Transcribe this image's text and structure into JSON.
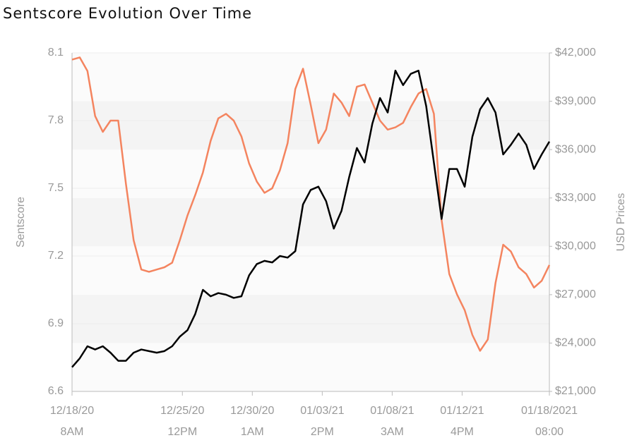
{
  "chart_data": {
    "type": "line",
    "title": "Sentscore Evolution Over Time",
    "ylabel": "Sentscore",
    "y2label": "USD Prices",
    "x": [
      "2020-12-18T08:00",
      "2020-12-18T20:00",
      "2020-12-19T08:00",
      "2020-12-19T20:00",
      "2020-12-20T08:00",
      "2020-12-20T20:00",
      "2020-12-21T08:00",
      "2020-12-21T20:00",
      "2020-12-22T08:00",
      "2020-12-22T20:00",
      "2020-12-23T08:00",
      "2020-12-23T20:00",
      "2020-12-24T08:00",
      "2020-12-24T20:00",
      "2020-12-25T08:00",
      "2020-12-25T20:00",
      "2020-12-26T08:00",
      "2020-12-26T20:00",
      "2020-12-27T08:00",
      "2020-12-27T20:00",
      "2020-12-28T08:00",
      "2020-12-28T20:00",
      "2020-12-29T08:00",
      "2020-12-29T20:00",
      "2020-12-30T08:00",
      "2020-12-30T20:00",
      "2020-12-31T08:00",
      "2020-12-31T20:00",
      "2021-01-01T08:00",
      "2021-01-01T20:00",
      "2021-01-02T08:00",
      "2021-01-02T20:00",
      "2021-01-03T08:00",
      "2021-01-03T20:00",
      "2021-01-04T08:00",
      "2021-01-04T20:00",
      "2021-01-05T08:00",
      "2021-01-05T20:00",
      "2021-01-06T08:00",
      "2021-01-06T20:00",
      "2021-01-07T08:00",
      "2021-01-07T20:00",
      "2021-01-08T08:00",
      "2021-01-08T20:00",
      "2021-01-09T08:00",
      "2021-01-09T20:00",
      "2021-01-10T08:00",
      "2021-01-10T20:00",
      "2021-01-11T08:00",
      "2021-01-11T20:00",
      "2021-01-12T08:00",
      "2021-01-12T20:00",
      "2021-01-13T08:00",
      "2021-01-13T20:00",
      "2021-01-14T08:00",
      "2021-01-14T20:00",
      "2021-01-15T08:00",
      "2021-01-15T20:00",
      "2021-01-16T08:00",
      "2021-01-16T20:00",
      "2021-01-17T08:00",
      "2021-01-17T20:00",
      "2021-01-18T08:00"
    ],
    "series": [
      {
        "name": "Sentscore",
        "color": "#f4845f",
        "axis": "y",
        "values": [
          8.07,
          8.08,
          8.02,
          7.82,
          7.75,
          7.8,
          7.8,
          7.52,
          7.27,
          7.14,
          7.13,
          7.14,
          7.15,
          7.17,
          7.27,
          7.38,
          7.47,
          7.57,
          7.71,
          7.81,
          7.83,
          7.8,
          7.73,
          7.61,
          7.53,
          7.48,
          7.5,
          7.58,
          7.7,
          7.94,
          8.03,
          7.87,
          7.7,
          7.76,
          7.92,
          7.88,
          7.82,
          7.95,
          7.96,
          7.88,
          7.8,
          7.76,
          7.77,
          7.79,
          7.86,
          7.92,
          7.94,
          7.83,
          7.36,
          7.12,
          7.03,
          6.96,
          6.85,
          6.78,
          6.83,
          7.08,
          7.25,
          7.22,
          7.15,
          7.12,
          7.06,
          7.09,
          7.16
        ]
      },
      {
        "name": "USD Prices",
        "color": "#000000",
        "axis": "y2",
        "values": [
          22500,
          23050,
          23800,
          23600,
          23800,
          23400,
          22900,
          22900,
          23400,
          23600,
          23500,
          23400,
          23500,
          23800,
          24400,
          24800,
          25800,
          27300,
          26900,
          27100,
          27000,
          26800,
          26900,
          28200,
          28900,
          29100,
          29000,
          29400,
          29300,
          29700,
          32600,
          33500,
          33700,
          32800,
          31100,
          32200,
          34300,
          36100,
          35200,
          37600,
          39200,
          38300,
          40900,
          40000,
          40700,
          40900,
          38700,
          35200,
          31700,
          34800,
          34800,
          33700,
          36800,
          38500,
          39200,
          38300,
          35700,
          36300,
          37000,
          36300,
          34800,
          35700,
          36500
        ]
      }
    ],
    "xlim": [
      "2020-12-18T08:00",
      "2021-01-18T08:00"
    ],
    "xticks": [
      {
        "value": "2020-12-18T08:00",
        "label": "12/18/20\n8AM"
      },
      {
        "value": "2020-12-25T12:00",
        "label": "12/25/20\n12PM"
      },
      {
        "value": "2020-12-30T01:00",
        "label": "12/30/20\n1AM"
      },
      {
        "value": "2021-01-03T14:00",
        "label": "01/03/21\n2PM"
      },
      {
        "value": "2021-01-08T03:00",
        "label": "01/08/21\n3AM"
      },
      {
        "value": "2021-01-12T16:00",
        "label": "01/12/21\n4PM"
      },
      {
        "value": "2021-01-18T08:00",
        "label": "01/18/2021\n08:00"
      }
    ],
    "ylim": [
      6.6,
      8.1
    ],
    "yticks": [
      6.6,
      6.9,
      7.2,
      7.5,
      7.8,
      8.1
    ],
    "y2lim": [
      21000,
      42000
    ],
    "y2ticks": [
      {
        "value": 21000,
        "label": "$21,000"
      },
      {
        "value": 24000,
        "label": "$24,000"
      },
      {
        "value": 27000,
        "label": "$27,000"
      },
      {
        "value": 30000,
        "label": "$30,000"
      },
      {
        "value": 33000,
        "label": "$33,000"
      },
      {
        "value": 36000,
        "label": "$36,000"
      },
      {
        "value": 39000,
        "label": "$39,000"
      },
      {
        "value": 42000,
        "label": "$42,000"
      }
    ],
    "grid": true
  }
}
